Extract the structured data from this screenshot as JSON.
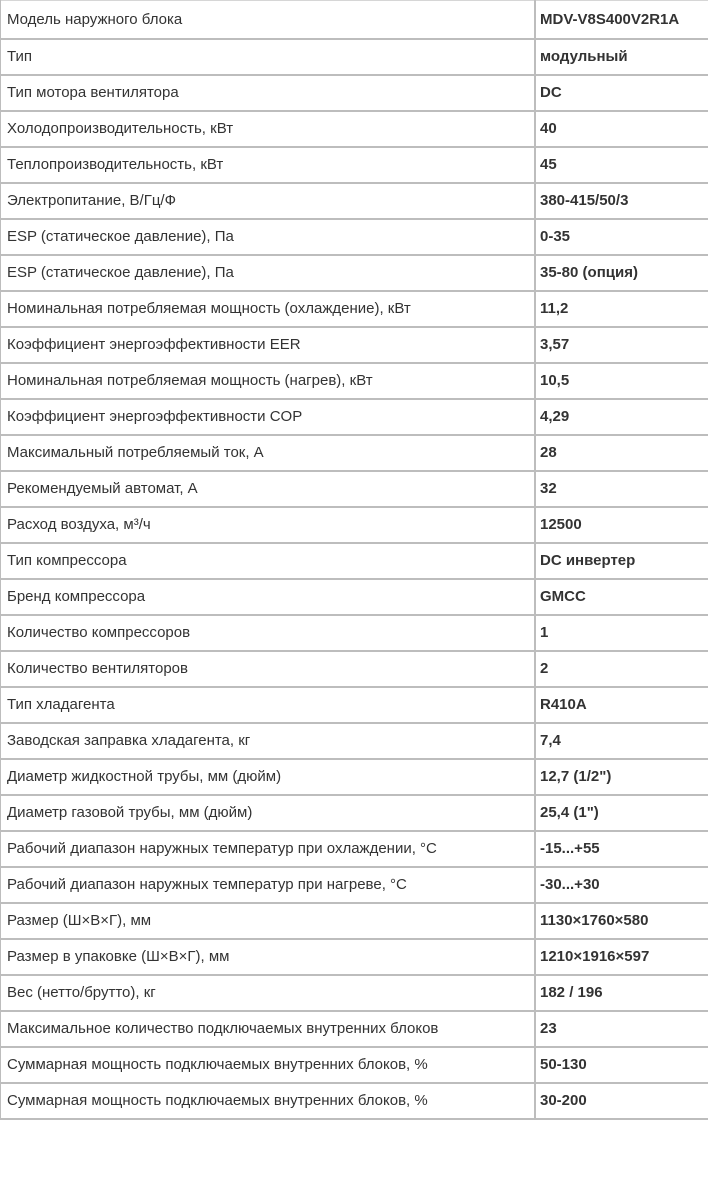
{
  "rows": [
    {
      "param": "Модель наружного блока",
      "value": "MDV-V8S400V2R1A"
    },
    {
      "param": "Тип",
      "value": "модульный"
    },
    {
      "param": "Тип мотора вентилятора",
      "value": "DC"
    },
    {
      "param": "Холодопроизводительность, кВт",
      "value": "40"
    },
    {
      "param": "Теплопроизводительность, кВт",
      "value": "45"
    },
    {
      "param": "Электропитание, В/Гц/Ф",
      "value": "380-415/50/3"
    },
    {
      "param": "ESP (статическое давление), Па",
      "value": "0-35"
    },
    {
      "param": "ESP (статическое давление), Па",
      "value": "35-80 (опция)"
    },
    {
      "param": "Номинальная потребляемая мощность (охлаждение), кВт",
      "value": "11,2"
    },
    {
      "param": "Коэффициент энергоэффективности EER",
      "value": "3,57"
    },
    {
      "param": "Номинальная потребляемая мощность (нагрев), кВт",
      "value": "10,5"
    },
    {
      "param": "Коэффициент энергоэффективности COP",
      "value": "4,29"
    },
    {
      "param": "Максимальный потребляемый ток, А",
      "value": "28"
    },
    {
      "param": "Рекомендуемый автомат, А",
      "value": "32"
    },
    {
      "param": "Расход воздуха, м³/ч",
      "value": "12500"
    },
    {
      "param": "Тип компрессора",
      "value": "DC инвертер"
    },
    {
      "param": "Бренд компрессора",
      "value": "GMCC"
    },
    {
      "param": "Количество компрессоров",
      "value": "1"
    },
    {
      "param": "Количество вентиляторов",
      "value": "2"
    },
    {
      "param": "Тип хладагента",
      "value": "R410A"
    },
    {
      "param": "Заводская заправка хладагента, кг",
      "value": "7,4"
    },
    {
      "param": "Диаметр жидкостной трубы, мм (дюйм)",
      "value": "12,7 (1/2\")"
    },
    {
      "param": "Диаметр газовой трубы, мм (дюйм)",
      "value": "25,4 (1\")"
    },
    {
      "param": "Рабочий диапазон наружных температур при охлаждении, °С",
      "value": "-15...+55"
    },
    {
      "param": "Рабочий диапазон наружных температур при нагреве, °С",
      "value": "-30...+30"
    },
    {
      "param": "Размер (Ш×В×Г), мм",
      "value": "1130×1760×580"
    },
    {
      "param": "Размер в упаковке (Ш×В×Г), мм",
      "value": "1210×1916×597"
    },
    {
      "param": "Вес (нетто/брутто), кг",
      "value": "182 / 196"
    },
    {
      "param": "Максимальное количество подключаемых внутренних блоков",
      "value": "23"
    },
    {
      "param": "Суммарная мощность подключаемых внутренних блоков, %",
      "value": "50-130"
    },
    {
      "param": "Суммарная мощность подключаемых внутренних блоков, %",
      "value": "30-200"
    }
  ]
}
